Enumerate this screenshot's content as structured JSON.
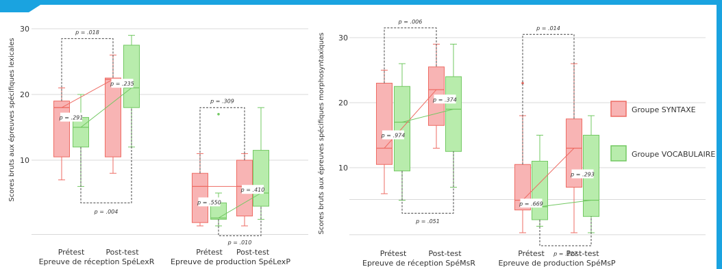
{
  "colors": {
    "frame": "#1aa3e0",
    "syntaxe_fill": "#f8b4b4",
    "syntaxe_stroke": "#ee6b63",
    "vocab_fill": "#b8ecac",
    "vocab_stroke": "#72c862",
    "grid": "#d9d9d9",
    "bracket": "#444444",
    "text": "#333333"
  },
  "legend": {
    "syntaxe": "Groupe SYNTAXE",
    "vocabulaire": "Groupe VOCABULAIRE"
  },
  "chart_data": [
    {
      "type": "box",
      "ylabel": "Scores bruts aux épreuves spécifiques lexicales",
      "ylim": [
        0,
        31
      ],
      "yticks": [
        10,
        20,
        30
      ],
      "grid": true,
      "categories": [
        "Prétest",
        "Post-test",
        "Prétest",
        "Post-test"
      ],
      "groups": [
        "Epreuve de réception SpéLexR",
        "Epreuve de production SpéLexP"
      ],
      "series": [
        {
          "name": "Groupe SYNTAXE",
          "boxes": [
            {
              "min": 7,
              "q1": 10.5,
              "median": 18,
              "q3": 19,
              "max": 21
            },
            {
              "min": 8,
              "q1": 10.5,
              "median": 22.3,
              "q3": 22.5,
              "max": 26
            },
            {
              "min": 0,
              "q1": 0.5,
              "median": 6,
              "q3": 8,
              "max": 11
            },
            {
              "min": 0,
              "q1": 1.5,
              "median": 6,
              "q3": 10,
              "max": 11
            }
          ]
        },
        {
          "name": "Groupe VOCABULAIRE",
          "boxes": [
            {
              "min": 6,
              "q1": 12,
              "median": 15,
              "q3": 16.5,
              "max": 20
            },
            {
              "min": 12,
              "q1": 18,
              "median": 21,
              "q3": 27.5,
              "max": 29
            },
            {
              "min": 0,
              "q1": 1,
              "median": 1.2,
              "q3": 3.5,
              "max": 5,
              "outliers": [
                17
              ]
            },
            {
              "min": 1,
              "q1": 3,
              "median": 5,
              "q3": 11.5,
              "max": 18
            }
          ]
        }
      ],
      "within_labels": [
        "p = .291",
        "p = .235",
        "p = .550",
        "p = .410"
      ],
      "brackets": [
        {
          "label": "p = .018",
          "side": "top",
          "level": 28.5,
          "label_value": 29.5,
          "groups": 0
        },
        {
          "label": "p = .004",
          "side": "bottom",
          "level": 3.5,
          "label_value": 2.2,
          "groups": 0
        },
        {
          "label": "p = .309",
          "side": "top",
          "level": 18,
          "label_value": 19,
          "groups": 1
        },
        {
          "label": "p = .010",
          "side": "bottom",
          "level": -1.5,
          "label_value": -2.5,
          "groups": 1
        }
      ]
    },
    {
      "type": "box",
      "ylabel": "Scores bruts aux épreuves spécifiques morphosyntaxiques",
      "ylim": [
        -1,
        34
      ],
      "yticks": [
        10,
        20,
        30
      ],
      "grid": true,
      "categories": [
        "Prétest",
        "Post-test",
        "Prétest",
        "Post-test"
      ],
      "groups": [
        "Epreuve de réception SpéMsR",
        "Epreuve de production SpéMsP"
      ],
      "series": [
        {
          "name": "Groupe SYNTAXE",
          "boxes": [
            {
              "min": 6,
              "q1": 10.5,
              "median": 13,
              "q3": 23,
              "max": 25
            },
            {
              "min": 13,
              "q1": 16.5,
              "median": 22,
              "q3": 25.5,
              "max": 29
            },
            {
              "min": 0,
              "q1": 3.5,
              "median": 5,
              "q3": 10.5,
              "max": 18,
              "outliers": [
                23
              ]
            },
            {
              "min": 0,
              "q1": 7,
              "median": 13,
              "q3": 17.5,
              "max": 26
            }
          ]
        },
        {
          "name": "Groupe VOCABULAIRE",
          "boxes": [
            {
              "min": 5,
              "q1": 9.5,
              "median": 17,
              "q3": 22.5,
              "max": 26
            },
            {
              "min": 7,
              "q1": 12.5,
              "median": 19,
              "q3": 24,
              "max": 29
            },
            {
              "min": 1,
              "q1": 2,
              "median": 4,
              "q3": 11,
              "max": 15
            },
            {
              "min": 0,
              "q1": 2.5,
              "median": 5,
              "q3": 15,
              "max": 18
            }
          ]
        }
      ],
      "within_labels": [
        "p = .974",
        "p = .374",
        "p = .669",
        "p = .293"
      ],
      "brackets": [
        {
          "label": "p = .006",
          "side": "top",
          "level": 31.5,
          "label_value": 32.5,
          "groups": 0
        },
        {
          "label": "p = .051",
          "side": "bottom",
          "level": 3,
          "label_value": 1.8,
          "groups": 0
        },
        {
          "label": "p = .014",
          "side": "top",
          "level": 30.5,
          "label_value": 31.5,
          "groups": 1
        },
        {
          "label": "p = .127",
          "side": "bottom",
          "level": -2,
          "label_value": -3.2,
          "groups": 1
        }
      ]
    }
  ]
}
